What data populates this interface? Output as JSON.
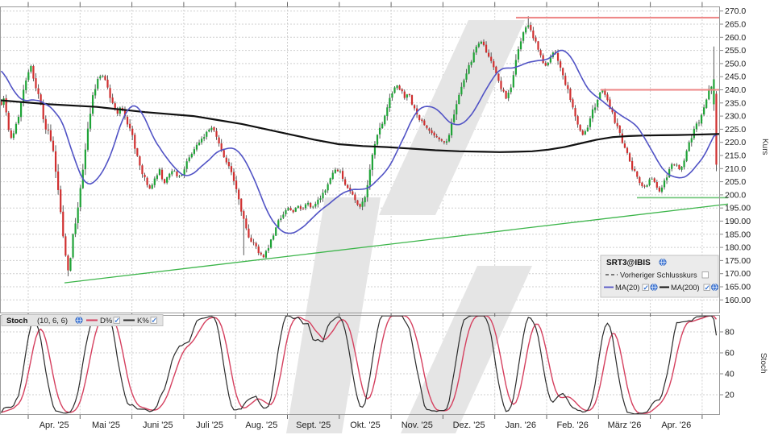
{
  "price_panel": {
    "legend": {
      "symbol": "SRT3@IBIS",
      "prev_close_label": "Vorheriger Schlusskurs",
      "prev_close_checked": false,
      "ma20_label": "MA(20)",
      "ma20_checked": true,
      "ma200_label": "MA(200)",
      "ma200_checked": true
    },
    "y_axis": {
      "title": "Kurs",
      "max": 270,
      "min": 160,
      "step": 5,
      "labels": [
        "270.0",
        "265.0",
        "260.0",
        "255.0",
        "250.0",
        "245.0",
        "240.0",
        "235.0",
        "230.0",
        "225.0",
        "220.0",
        "215.0",
        "210.0",
        "205.0",
        "200.0",
        "195.00",
        "190.00",
        "185.00",
        "180.00",
        "175.00",
        "170.00",
        "165.00",
        "160.00"
      ]
    }
  },
  "stoch_panel": {
    "legend": {
      "name": "Stoch",
      "params": "(10, 6, 6)",
      "d_label": "D%",
      "d_checked": true,
      "k_label": "K%",
      "k_checked": true
    },
    "y_axis": {
      "title": "Stoch",
      "ticks": [
        "80",
        "60",
        "40",
        "20"
      ]
    }
  },
  "x_axis": {
    "labels": [
      "Apr. '25",
      "Mai '25",
      "Juni '25",
      "Juli '25",
      "Aug. '25",
      "Sept. '25",
      "Okt. '25",
      "Nov. '25",
      "Dez. '25",
      "Jan. '26",
      "Feb. '26",
      "März '26",
      "Apr. '26"
    ]
  },
  "chart_data": {
    "type": "candlestick",
    "instrument": "SRT3@IBIS",
    "interval": "daily",
    "y_range": [
      160,
      270
    ],
    "grid": true,
    "price_anchors": [
      [
        0,
        233
      ],
      [
        4,
        237
      ],
      [
        8,
        230
      ],
      [
        13,
        222
      ],
      [
        18,
        224
      ],
      [
        24,
        232
      ],
      [
        30,
        240
      ],
      [
        36,
        247
      ],
      [
        39,
        249
      ],
      [
        44,
        241
      ],
      [
        50,
        235
      ],
      [
        56,
        227
      ],
      [
        62,
        221
      ],
      [
        68,
        212
      ],
      [
        74,
        196
      ],
      [
        80,
        179
      ],
      [
        85,
        170.5
      ],
      [
        89,
        181
      ],
      [
        95,
        192
      ],
      [
        100,
        203
      ],
      [
        105,
        216
      ],
      [
        110,
        228
      ],
      [
        116,
        238
      ],
      [
        122,
        244
      ],
      [
        127,
        246
      ],
      [
        133,
        241
      ],
      [
        139,
        235
      ],
      [
        145,
        230
      ],
      [
        150,
        234
      ],
      [
        156,
        229
      ],
      [
        162,
        225
      ],
      [
        168,
        216
      ],
      [
        174,
        210
      ],
      [
        180,
        206
      ],
      [
        186,
        202
      ],
      [
        192,
        206
      ],
      [
        198,
        210
      ],
      [
        203,
        204
      ],
      [
        209,
        208
      ],
      [
        215,
        210
      ],
      [
        221,
        206
      ],
      [
        227,
        209
      ],
      [
        233,
        213
      ],
      [
        240,
        217
      ],
      [
        247,
        220
      ],
      [
        254,
        223
      ],
      [
        261,
        226
      ],
      [
        267,
        224
      ],
      [
        273,
        219
      ],
      [
        279,
        213
      ],
      [
        285,
        210
      ],
      [
        291,
        204
      ],
      [
        297,
        197
      ],
      [
        303,
        190
      ],
      [
        309,
        184
      ],
      [
        315,
        181
      ],
      [
        321,
        178
      ],
      [
        327,
        176.5
      ],
      [
        333,
        180
      ],
      [
        339,
        185
      ],
      [
        345,
        190
      ],
      [
        351,
        192
      ],
      [
        357,
        195
      ],
      [
        363,
        193
      ],
      [
        369,
        196
      ],
      [
        375,
        194
      ],
      [
        381,
        197
      ],
      [
        387,
        194.5
      ],
      [
        393,
        197
      ],
      [
        399,
        200
      ],
      [
        405,
        203
      ],
      [
        411,
        207
      ],
      [
        417,
        210
      ],
      [
        423,
        208
      ],
      [
        429,
        204
      ],
      [
        435,
        201
      ],
      [
        441,
        198
      ],
      [
        447,
        195
      ],
      [
        452,
        198
      ],
      [
        457,
        207
      ],
      [
        462,
        215
      ],
      [
        468,
        222
      ],
      [
        474,
        227
      ],
      [
        480,
        233
      ],
      [
        486,
        238
      ],
      [
        492,
        242
      ],
      [
        497,
        240
      ],
      [
        502,
        237
      ],
      [
        507,
        238
      ],
      [
        512,
        234
      ],
      [
        517,
        230
      ],
      [
        522,
        228
      ],
      [
        527,
        226
      ],
      [
        532,
        224.5
      ],
      [
        537,
        223
      ],
      [
        542,
        222
      ],
      [
        548,
        221
      ],
      [
        553,
        220
      ],
      [
        558,
        224
      ],
      [
        563,
        230
      ],
      [
        568,
        236
      ],
      [
        573,
        241
      ],
      [
        578,
        246
      ],
      [
        583,
        250
      ],
      [
        588,
        254
      ],
      [
        593,
        257
      ],
      [
        598,
        259
      ],
      [
        603,
        255
      ],
      [
        608,
        251
      ],
      [
        613,
        248
      ],
      [
        618,
        244
      ],
      [
        623,
        240
      ],
      [
        628,
        236
      ],
      [
        633,
        240
      ],
      [
        638,
        247
      ],
      [
        643,
        255
      ],
      [
        648,
        261
      ],
      [
        653,
        265
      ],
      [
        658,
        263
      ],
      [
        663,
        259
      ],
      [
        668,
        255
      ],
      [
        673,
        251
      ],
      [
        678,
        249
      ],
      [
        683,
        253
      ],
      [
        688,
        255
      ],
      [
        693,
        250
      ],
      [
        698,
        245
      ],
      [
        703,
        241
      ],
      [
        708,
        235
      ],
      [
        713,
        230
      ],
      [
        718,
        226
      ],
      [
        723,
        222.5
      ],
      [
        728,
        225
      ],
      [
        733,
        230
      ],
      [
        738,
        234
      ],
      [
        743,
        238
      ],
      [
        748,
        240
      ],
      [
        753,
        236
      ],
      [
        758,
        232
      ],
      [
        763,
        228
      ],
      [
        768,
        224
      ],
      [
        773,
        219
      ],
      [
        778,
        215
      ],
      [
        783,
        211
      ],
      [
        788,
        208
      ],
      [
        793,
        205
      ],
      [
        798,
        203
      ],
      [
        803,
        204
      ],
      [
        808,
        207
      ],
      [
        813,
        204
      ],
      [
        818,
        201.5
      ],
      [
        823,
        204
      ],
      [
        828,
        208
      ],
      [
        833,
        211
      ],
      [
        838,
        212
      ],
      [
        843,
        209.5
      ],
      [
        848,
        213
      ],
      [
        853,
        218
      ],
      [
        858,
        222
      ],
      [
        863,
        226
      ],
      [
        868,
        229
      ],
      [
        873,
        234
      ],
      [
        877,
        238
      ],
      [
        881,
        241.5
      ],
      [
        884,
        243.5
      ],
      [
        889,
        212
      ]
    ],
    "candle_overrides": [
      {
        "x": 85,
        "low": 169
      },
      {
        "x": 303,
        "low": 177
      },
      {
        "x": 655,
        "high": 268
      },
      {
        "x": 886,
        "open": 234.5,
        "close": 244,
        "high": 256.5,
        "low": 232
      },
      {
        "x": 889,
        "open": 238.5,
        "close": 211.5,
        "high": 239.5,
        "low": 209
      }
    ],
    "ma20": {
      "period": 20,
      "computed_from_closes": true
    },
    "ma200_anchors": [
      [
        0,
        236
      ],
      [
        60,
        234.5
      ],
      [
        120,
        233.5
      ],
      [
        180,
        231.5
      ],
      [
        240,
        230
      ],
      [
        270,
        228.5
      ],
      [
        300,
        227
      ],
      [
        330,
        225
      ],
      [
        360,
        223
      ],
      [
        390,
        221
      ],
      [
        420,
        219.3
      ],
      [
        450,
        218.6
      ],
      [
        480,
        218.2
      ],
      [
        510,
        217.6
      ],
      [
        540,
        217
      ],
      [
        570,
        216.6
      ],
      [
        600,
        216.4
      ],
      [
        620,
        216.3
      ],
      [
        640,
        216.4
      ],
      [
        660,
        216.6
      ],
      [
        680,
        217.2
      ],
      [
        700,
        218.2
      ],
      [
        720,
        219.6
      ],
      [
        740,
        221
      ],
      [
        760,
        222
      ],
      [
        780,
        222.4
      ],
      [
        800,
        222.6
      ],
      [
        820,
        222.7
      ],
      [
        840,
        222.8
      ],
      [
        860,
        222.9
      ],
      [
        893,
        223.2
      ]
    ],
    "resistance_lines": [
      {
        "price": 267.5,
        "x_from": 640,
        "x_to": 893
      },
      {
        "price": 240.0,
        "x_from": 745,
        "x_to": 893
      }
    ],
    "support_line": {
      "price": 198.9,
      "x_from": 790,
      "x_to": 903
    },
    "trend_line": {
      "x1": 80,
      "price1": 166.5,
      "x2": 903,
      "price2": 196.5
    },
    "stochastic": {
      "k_period": 10,
      "k_smooth": 6,
      "d_smooth": 6,
      "range": [
        0,
        100
      ],
      "shown_ticks": [
        20,
        40,
        60,
        80
      ]
    },
    "colors": {
      "up": "#1fa337",
      "down": "#d02f2f",
      "wick": "#4a4a4a",
      "ma20": "#5153c5",
      "ma200": "#111111",
      "grid": "#cfcfcf",
      "border": "#9a9a9a",
      "resistance": "#ee8686",
      "support": "#6cc476",
      "trend": "#3cb54a",
      "stoch_k": "#2b2b2b",
      "stoch_d": "#d5405f",
      "watermark": "#e5e5e5",
      "legend_bg": "#ebebeb",
      "legend_border": "#c3c3c3",
      "check": "#2f6fd0",
      "icon": "#4077d4",
      "axis_text": "#1a1a1a"
    }
  }
}
